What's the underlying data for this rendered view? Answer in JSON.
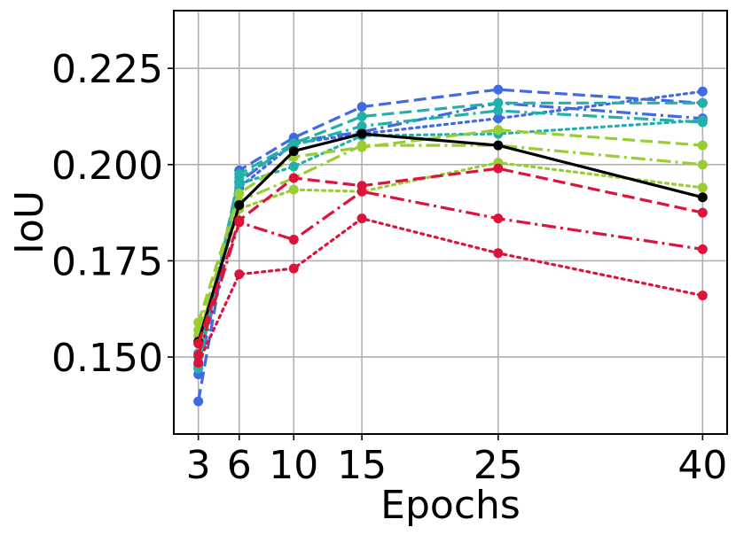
{
  "chart_data": {
    "type": "line",
    "title": "",
    "xlabel": "Epochs",
    "ylabel": "IoU",
    "x": [
      3,
      6,
      10,
      15,
      25,
      40
    ],
    "x_ticks": [
      "3",
      "6",
      "10",
      "15",
      "25",
      "40"
    ],
    "y_ticks": [
      "0.150",
      "0.175",
      "0.200",
      "0.225"
    ],
    "y_tick_values": [
      0.15,
      0.175,
      0.2,
      0.225
    ],
    "xlim": [
      1.2,
      41.8
    ],
    "ylim": [
      0.13,
      0.24
    ],
    "grid": true,
    "legend": "none",
    "series": [
      {
        "color": "#4169e1",
        "dash": "dashed",
        "values": [
          0.1385,
          0.1985,
          0.207,
          0.215,
          0.2195,
          0.216
        ]
      },
      {
        "color": "#4169e1",
        "dash": "dashdot",
        "values": [
          0.1455,
          0.1955,
          0.206,
          0.2085,
          0.216,
          0.212
        ]
      },
      {
        "color": "#4169e1",
        "dash": "dotted",
        "values": [
          0.148,
          0.194,
          0.2055,
          0.208,
          0.212,
          0.219
        ]
      },
      {
        "color": "#20b2aa",
        "dash": "dashed",
        "values": [
          0.147,
          0.1975,
          0.2055,
          0.2125,
          0.216,
          0.216
        ]
      },
      {
        "color": "#20b2aa",
        "dash": "dashdot",
        "values": [
          0.15,
          0.1965,
          0.205,
          0.21,
          0.214,
          0.211
        ]
      },
      {
        "color": "#20b2aa",
        "dash": "dotted",
        "values": [
          0.151,
          0.195,
          0.1995,
          0.2075,
          0.208,
          0.2115
        ]
      },
      {
        "color": "#9acd32",
        "dash": "dashed",
        "values": [
          0.159,
          0.1925,
          0.202,
          0.2045,
          0.209,
          0.205
        ]
      },
      {
        "color": "#9acd32",
        "dash": "dashdot",
        "values": [
          0.157,
          0.1905,
          0.1965,
          0.205,
          0.205,
          0.2
        ]
      },
      {
        "color": "#9acd32",
        "dash": "dotted",
        "values": [
          0.1555,
          0.1885,
          0.1935,
          0.193,
          0.2005,
          0.194
        ]
      },
      {
        "color": "#000000",
        "dash": "solid",
        "values": [
          0.154,
          0.1895,
          0.2035,
          0.208,
          0.205,
          0.1915
        ]
      },
      {
        "color": "#dc143c",
        "dash": "dashed",
        "values": [
          0.1535,
          0.1855,
          0.1965,
          0.1945,
          0.199,
          0.1875
        ]
      },
      {
        "color": "#dc143c",
        "dash": "dashdot",
        "values": [
          0.1505,
          0.185,
          0.1805,
          0.193,
          0.186,
          0.178
        ]
      },
      {
        "color": "#dc143c",
        "dash": "dotted",
        "values": [
          0.1485,
          0.1715,
          0.173,
          0.186,
          0.177,
          0.166
        ]
      }
    ]
  }
}
